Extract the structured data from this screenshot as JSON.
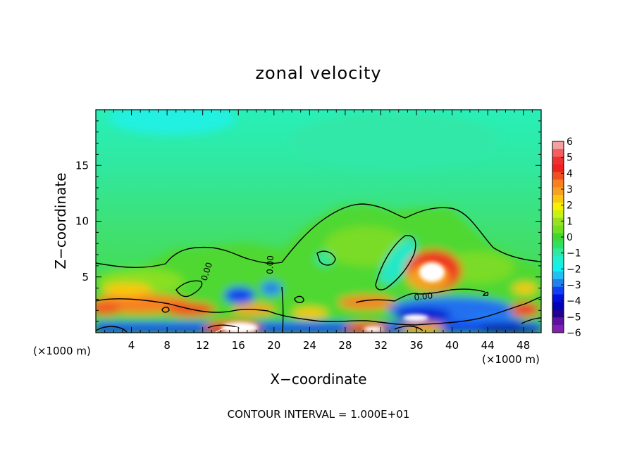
{
  "chart_data": {
    "type": "heatmap",
    "title": "zonal velocity",
    "xlabel": "X−coordinate",
    "ylabel": "Z−coordinate",
    "x_unit_left": "(×1000 m)",
    "x_unit_right": "(×1000 m)",
    "xlim": [
      0,
      50
    ],
    "ylim": [
      0,
      20
    ],
    "xticks": [
      4,
      8,
      12,
      16,
      20,
      24,
      28,
      32,
      36,
      40,
      44,
      48
    ],
    "yticks": [
      5,
      10,
      15
    ],
    "contour_interval_text": "CONTOUR INTERVAL = 1.000E+01",
    "contour_labels": [
      "0.00",
      "0.00",
      "0.00",
      "0.00"
    ],
    "colorbar": {
      "ticks": [
        "6",
        "5",
        "4",
        "3",
        "2",
        "1",
        "0",
        "−1",
        "−2",
        "−3",
        "−4",
        "−5",
        "−6"
      ],
      "levels": [
        {
          "value": 6,
          "color": "#f4a0a0"
        },
        {
          "value": 5.5,
          "color": "#f46060"
        },
        {
          "value": 5,
          "color": "#f03030"
        },
        {
          "value": 4.5,
          "color": "#f02020"
        },
        {
          "value": 4,
          "color": "#f05020"
        },
        {
          "value": 3.5,
          "color": "#f88020"
        },
        {
          "value": 3,
          "color": "#f8a020"
        },
        {
          "value": 2.5,
          "color": "#f8c810"
        },
        {
          "value": 2,
          "color": "#f8f000"
        },
        {
          "value": 1.5,
          "color": "#c8f010"
        },
        {
          "value": 1,
          "color": "#98e020"
        },
        {
          "value": 0.5,
          "color": "#70e020"
        },
        {
          "value": 0,
          "color": "#40d830"
        },
        {
          "value": -0.5,
          "color": "#30e060"
        },
        {
          "value": -1,
          "color": "#30e8a0"
        },
        {
          "value": -1.5,
          "color": "#20f0d0"
        },
        {
          "value": -2,
          "color": "#10f0f0"
        },
        {
          "value": -2.5,
          "color": "#20c0f0"
        },
        {
          "value": -3,
          "color": "#2080f0"
        },
        {
          "value": -3.5,
          "color": "#1040f0"
        },
        {
          "value": -4,
          "color": "#0010e0"
        },
        {
          "value": -4.5,
          "color": "#0000b8"
        },
        {
          "value": -5,
          "color": "#200090"
        },
        {
          "value": -5.5,
          "color": "#6010a0"
        },
        {
          "value": -6,
          "color": "#8020b0"
        }
      ]
    }
  }
}
